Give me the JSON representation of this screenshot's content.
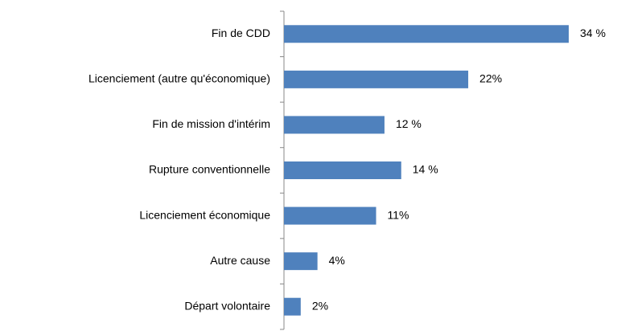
{
  "chart_data": {
    "type": "bar",
    "orientation": "horizontal",
    "categories": [
      "Fin de CDD",
      "Licenciement (autre qu'économique)",
      "Fin de mission d'intérim",
      "Rupture conventionnelle",
      "Licenciement économique",
      "Autre cause",
      "Départ volontaire"
    ],
    "values": [
      34,
      22,
      12,
      14,
      11,
      4,
      2
    ],
    "value_labels": [
      "34 %",
      "22%",
      "12 %",
      "14 %",
      "11%",
      "4%",
      "2%"
    ],
    "color": "#4f81bd"
  }
}
